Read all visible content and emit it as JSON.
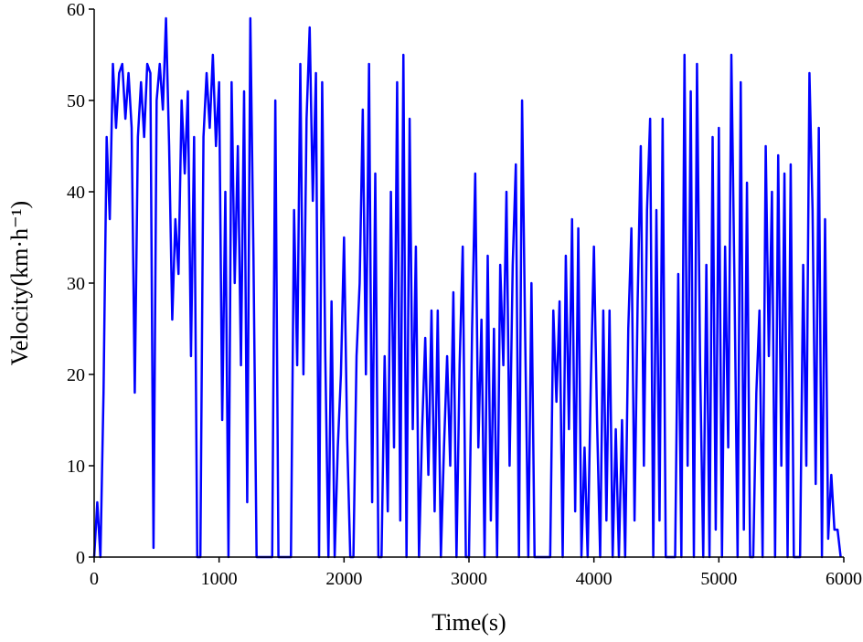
{
  "chart_data": {
    "type": "line",
    "x_label": "Time(s)",
    "y_label": "Velocity(km·h⁻¹)",
    "color": "#0000ff",
    "xlim": [
      0,
      6000
    ],
    "xticks": [
      0,
      1000,
      2000,
      3000,
      4000,
      5000,
      6000
    ],
    "ylim": [
      0,
      60
    ],
    "yticks": [
      0,
      10,
      20,
      30,
      40,
      50,
      60
    ],
    "x": [
      0,
      25,
      50,
      75,
      100,
      125,
      150,
      175,
      200,
      225,
      250,
      275,
      300,
      325,
      350,
      375,
      400,
      425,
      450,
      475,
      500,
      525,
      550,
      575,
      600,
      625,
      650,
      675,
      700,
      725,
      750,
      775,
      800,
      825,
      850,
      875,
      900,
      925,
      950,
      975,
      1000,
      1025,
      1050,
      1075,
      1100,
      1125,
      1150,
      1175,
      1200,
      1225,
      1250,
      1275,
      1300,
      1325,
      1350,
      1375,
      1400,
      1425,
      1450,
      1475,
      1500,
      1525,
      1550,
      1575,
      1600,
      1625,
      1650,
      1675,
      1700,
      1725,
      1750,
      1775,
      1800,
      1825,
      1850,
      1875,
      1900,
      1925,
      1950,
      1975,
      2000,
      2025,
      2050,
      2075,
      2100,
      2125,
      2150,
      2175,
      2200,
      2225,
      2250,
      2275,
      2300,
      2325,
      2350,
      2375,
      2400,
      2425,
      2450,
      2475,
      2500,
      2525,
      2550,
      2575,
      2600,
      2625,
      2650,
      2675,
      2700,
      2725,
      2750,
      2775,
      2800,
      2825,
      2850,
      2875,
      2900,
      2925,
      2950,
      2975,
      3000,
      3025,
      3050,
      3075,
      3100,
      3125,
      3150,
      3175,
      3200,
      3225,
      3250,
      3275,
      3300,
      3325,
      3350,
      3375,
      3400,
      3425,
      3450,
      3475,
      3500,
      3525,
      3550,
      3575,
      3600,
      3625,
      3650,
      3675,
      3700,
      3725,
      3750,
      3775,
      3800,
      3825,
      3850,
      3875,
      3900,
      3925,
      3950,
      3975,
      4000,
      4025,
      4050,
      4075,
      4100,
      4125,
      4150,
      4175,
      4200,
      4225,
      4250,
      4275,
      4300,
      4325,
      4350,
      4375,
      4400,
      4425,
      4450,
      4475,
      4500,
      4525,
      4550,
      4575,
      4600,
      4625,
      4650,
      4675,
      4700,
      4725,
      4750,
      4775,
      4800,
      4825,
      4850,
      4875,
      4900,
      4925,
      4950,
      4975,
      5000,
      5025,
      5050,
      5075,
      5100,
      5125,
      5150,
      5175,
      5200,
      5225,
      5250,
      5275,
      5300,
      5325,
      5350,
      5375,
      5400,
      5425,
      5450,
      5475,
      5500,
      5525,
      5550,
      5575,
      5600,
      5625,
      5650,
      5675,
      5700,
      5725,
      5750,
      5775,
      5800,
      5825,
      5850,
      5875,
      5900,
      5925,
      5950,
      5975
    ],
    "values": [
      0,
      6,
      0,
      18,
      46,
      37,
      54,
      47,
      53,
      54,
      48,
      53,
      47,
      18,
      46,
      52,
      46,
      54,
      53,
      1,
      50,
      54,
      49,
      59,
      45,
      26,
      37,
      31,
      50,
      42,
      51,
      22,
      46,
      0,
      0,
      46,
      53,
      47,
      55,
      45,
      52,
      15,
      40,
      0,
      52,
      30,
      45,
      21,
      51,
      6,
      59,
      33,
      0,
      0,
      0,
      0,
      0,
      0,
      50,
      0,
      0,
      0,
      0,
      0,
      38,
      21,
      54,
      20,
      48,
      58,
      39,
      53,
      0,
      52,
      22,
      0,
      28,
      0,
      12,
      20,
      35,
      13,
      0,
      0,
      22,
      30,
      49,
      20,
      54,
      6,
      42,
      0,
      0,
      22,
      5,
      40,
      12,
      52,
      4,
      55,
      0,
      48,
      14,
      34,
      0,
      14,
      24,
      9,
      27,
      5,
      27,
      0,
      12,
      22,
      10,
      29,
      0,
      21,
      34,
      0,
      0,
      25,
      42,
      12,
      26,
      0,
      33,
      4,
      25,
      0,
      32,
      21,
      40,
      10,
      32,
      43,
      0,
      50,
      24,
      0,
      30,
      0,
      0,
      0,
      0,
      0,
      0,
      27,
      17,
      28,
      0,
      33,
      14,
      37,
      5,
      36,
      0,
      12,
      0,
      19,
      34,
      15,
      0,
      27,
      4,
      27,
      0,
      14,
      0,
      15,
      0,
      25,
      36,
      4,
      28,
      45,
      10,
      38,
      48,
      0,
      38,
      4,
      48,
      0,
      0,
      0,
      0,
      31,
      0,
      55,
      10,
      51,
      0,
      54,
      21,
      0,
      32,
      0,
      46,
      3,
      47,
      0,
      34,
      12,
      55,
      30,
      0,
      52,
      3,
      41,
      0,
      0,
      18,
      27,
      0,
      45,
      22,
      40,
      0,
      44,
      10,
      42,
      0,
      43,
      0,
      0,
      0,
      32,
      10,
      53,
      38,
      8,
      47,
      0,
      37,
      2,
      9,
      3,
      3,
      0
    ]
  }
}
